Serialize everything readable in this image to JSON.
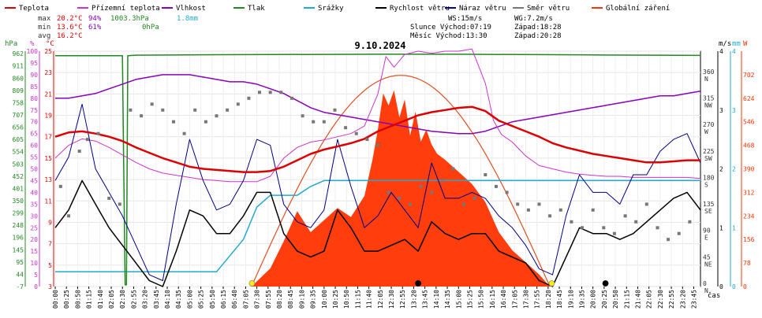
{
  "chart_data": {
    "type": "line",
    "title": "9.10.2024",
    "legend": [
      {
        "name": "Teplota",
        "color": "#dd0000"
      },
      {
        "name": "Přízemní teplota",
        "color": "#cc33cc"
      },
      {
        "name": "Vlhkost",
        "color": "#8800bb"
      },
      {
        "name": "Tlak",
        "color": "#228822"
      },
      {
        "name": "Srážky",
        "color": "#22aacc"
      },
      {
        "name": "Rychlost větru",
        "color": "#000000"
      },
      {
        "name": "Náraz větru",
        "color": "#000088"
      },
      {
        "name": "Směr větru",
        "color": "#777777"
      },
      {
        "name": "Globální záření",
        "color": "#ff3300"
      }
    ],
    "stats": {
      "max": {
        "label": "max",
        "temp": "20.2°C",
        "hum": "94%",
        "press": "1003.3hPa",
        "rain": "1.8mm"
      },
      "min": {
        "label": "min",
        "temp": "13.6°C",
        "hum": "61%",
        "press": "0hPa"
      },
      "avg": {
        "label": "avg",
        "temp": "16.2°C"
      }
    },
    "info": {
      "ws": "WS:15m/s",
      "wg": "WG:7.2m/s",
      "sun": "Slunce Východ:07:19",
      "sun_set": "Západ:18:28",
      "moon": "Měsíc  Východ:13:30",
      "moon_set": "Západ:20:28"
    },
    "axis_titles": {
      "hpa": "hPa",
      "pct": "%",
      "degc": "°C",
      "ms": "m/s",
      "mm": "mm",
      "w": "W",
      "time": "čas"
    },
    "left_axes": {
      "hpa": [
        "-7",
        "44",
        "95",
        "145",
        "196",
        "248",
        "299",
        "350",
        "401",
        "452",
        "503",
        "554",
        "605",
        "656",
        "707",
        "758",
        "809",
        "860",
        "911",
        "962"
      ],
      "pct": [
        "0",
        "5",
        "10",
        "15",
        "20",
        "25",
        "30",
        "35",
        "40",
        "45",
        "50",
        "55",
        "60",
        "65",
        "70",
        "75",
        "80",
        "85",
        "90",
        "95",
        "100"
      ],
      "degc": [
        "3",
        "5",
        "7",
        "9",
        "11",
        "13",
        "15",
        "17",
        "19",
        "21",
        "23",
        "25"
      ]
    },
    "right_axes": {
      "dir": [
        {
          "v": 0,
          "label": "0",
          "card": "N"
        },
        {
          "v": 45,
          "label": "45",
          "card": "NE"
        },
        {
          "v": 90,
          "label": "90",
          "card": "E"
        },
        {
          "v": 135,
          "label": "135",
          "card": "SE"
        },
        {
          "v": 180,
          "label": "180",
          "card": "S"
        },
        {
          "v": 225,
          "label": "225",
          "card": "SW"
        },
        {
          "v": 270,
          "label": "270",
          "card": "W"
        },
        {
          "v": 315,
          "label": "315",
          "card": "NW"
        },
        {
          "v": 360,
          "label": "360",
          "card": "N"
        }
      ],
      "ms": [
        "0",
        "1",
        "2",
        "3",
        "4"
      ],
      "mm": [
        "0",
        "1",
        "2",
        "3",
        "4"
      ],
      "w": [
        "0",
        "78",
        "156",
        "234",
        "312",
        "390",
        "468",
        "546",
        "624",
        "702"
      ]
    },
    "x_ticks": [
      "00:00",
      "00:25",
      "00:50",
      "01:15",
      "01:40",
      "02:05",
      "02:30",
      "02:55",
      "03:20",
      "03:45",
      "04:10",
      "04:35",
      "05:00",
      "05:25",
      "05:50",
      "06:15",
      "06:40",
      "07:05",
      "07:30",
      "07:55",
      "08:20",
      "08:45",
      "09:10",
      "09:35",
      "10:00",
      "10:25",
      "10:50",
      "11:15",
      "11:40",
      "12:05",
      "12:30",
      "12:55",
      "13:20",
      "13:45",
      "14:10",
      "14:35",
      "15:00",
      "15:25",
      "15:50",
      "16:15",
      "16:40",
      "17:05",
      "17:30",
      "17:55",
      "18:20",
      "18:45",
      "19:10",
      "19:35",
      "20:00",
      "20:25",
      "20:50",
      "21:15",
      "21:40",
      "22:05",
      "22:30",
      "22:55",
      "23:20",
      "23:45"
    ],
    "temperature": {
      "x": [
        0,
        0.5,
        1,
        1.5,
        2,
        2.5,
        3,
        3.5,
        4,
        4.5,
        5,
        5.5,
        6,
        6.5,
        7,
        7.5,
        8,
        8.5,
        9,
        9.5,
        10,
        10.5,
        11,
        11.5,
        12,
        12.5,
        13,
        13.5,
        14,
        14.5,
        15,
        15.5,
        16,
        16.5,
        17,
        17.5,
        18,
        18.5,
        19,
        19.5,
        20,
        20.5,
        21,
        21.5,
        22,
        22.5,
        23,
        23.5,
        24
      ],
      "values": [
        17.0,
        17.4,
        17.5,
        17.3,
        17.0,
        16.6,
        16.0,
        15.5,
        15.0,
        14.6,
        14.2,
        14.0,
        13.9,
        13.8,
        13.7,
        13.7,
        13.8,
        14.2,
        14.8,
        15.4,
        15.8,
        16.1,
        16.4,
        16.8,
        17.5,
        18.0,
        18.5,
        19.0,
        19.3,
        19.5,
        19.7,
        19.8,
        19.4,
        18.5,
        18.0,
        17.5,
        17.0,
        16.4,
        16.0,
        15.7,
        15.4,
        15.2,
        15.0,
        14.8,
        14.6,
        14.6,
        14.7,
        14.8,
        14.8
      ]
    },
    "ground_temperature": {
      "x": [
        0,
        0.5,
        1,
        1.5,
        2,
        2.5,
        3,
        3.5,
        4,
        4.5,
        5,
        5.5,
        6,
        6.5,
        7,
        7.5,
        8,
        8.5,
        9,
        9.5,
        10,
        10.5,
        11,
        11.5,
        12,
        12.3,
        12.6,
        13,
        13.5,
        14,
        14.5,
        15,
        15.5,
        16,
        16.3,
        16.6,
        17,
        17.5,
        18,
        18.5,
        19,
        19.5,
        20,
        20.5,
        21,
        21.5,
        22,
        22.5,
        23,
        23.5,
        24
      ],
      "values": [
        15.0,
        16.2,
        16.8,
        16.6,
        16.0,
        15.3,
        14.6,
        14.0,
        13.6,
        13.4,
        13.2,
        13.0,
        12.9,
        12.8,
        12.8,
        12.8,
        13.3,
        15.0,
        16.0,
        16.5,
        16.7,
        17.0,
        17.3,
        18.0,
        21.0,
        24.5,
        23.5,
        24.7,
        25.0,
        24.8,
        25.0,
        25.0,
        25.2,
        22.0,
        18.5,
        17.2,
        16.5,
        15.2,
        14.3,
        14.0,
        13.7,
        13.5,
        13.4,
        13.3,
        13.3,
        13.2,
        13.2,
        13.2,
        13.2,
        13.2,
        13.1
      ]
    },
    "humidity": {
      "x": [
        0,
        0.5,
        1,
        1.5,
        2,
        2.5,
        3,
        3.5,
        4,
        4.5,
        5,
        5.5,
        6,
        6.5,
        7,
        7.5,
        8,
        8.5,
        9,
        9.5,
        10,
        10.5,
        11,
        11.5,
        12,
        12.5,
        13,
        13.5,
        14,
        14.5,
        15,
        15.5,
        16,
        16.5,
        17,
        17.5,
        18,
        18.5,
        19,
        19.5,
        20,
        20.5,
        21,
        21.5,
        22,
        22.5,
        23,
        23.5,
        24
      ],
      "values": [
        80,
        80,
        81,
        82,
        84,
        86,
        88,
        89,
        90,
        90,
        90,
        89,
        88,
        87,
        87,
        86,
        84,
        82,
        79,
        76,
        74,
        73,
        72,
        71,
        70,
        69,
        68,
        67,
        66,
        65.5,
        65,
        65,
        66,
        68,
        70,
        71,
        72,
        73,
        74,
        75,
        76,
        77,
        78,
        79,
        80,
        81,
        81,
        82,
        83
      ]
    },
    "pressure": {
      "x": [
        0,
        2.5,
        2.6,
        2.65,
        2.7,
        3,
        6,
        12,
        15,
        20,
        24
      ],
      "values": [
        984,
        984,
        0,
        0,
        984,
        986,
        988,
        990,
        990,
        987,
        985
      ],
      "range": [
        -7,
        1003.3
      ]
    },
    "rain": {
      "x": [
        0,
        6,
        7,
        7.5,
        8,
        8.5,
        9,
        9.5,
        10,
        24
      ],
      "values": [
        0.25,
        0.25,
        0.8,
        1.35,
        1.55,
        1.55,
        1.55,
        1.7,
        1.8,
        1.8
      ]
    },
    "wind_speed": {
      "x": [
        0,
        0.5,
        1,
        1.5,
        2,
        2.5,
        3,
        3.5,
        4,
        4.5,
        5,
        5.5,
        6,
        6.5,
        7,
        7.5,
        8,
        8.5,
        9,
        9.5,
        10,
        10.5,
        11,
        11.5,
        12,
        12.5,
        13,
        13.5,
        14,
        14.5,
        15,
        15.5,
        16,
        16.5,
        17,
        17.5,
        18,
        18.5,
        19,
        19.5,
        20,
        20.5,
        21,
        21.5,
        22,
        22.5,
        23,
        23.5,
        24
      ],
      "values": [
        1.0,
        1.3,
        1.8,
        1.4,
        1.0,
        0.7,
        0.4,
        0.1,
        0.0,
        0.6,
        1.3,
        1.2,
        0.9,
        0.9,
        1.2,
        1.6,
        1.6,
        0.9,
        0.6,
        0.5,
        0.6,
        1.3,
        1.0,
        0.6,
        0.6,
        0.7,
        0.8,
        0.6,
        1.1,
        0.9,
        0.8,
        0.9,
        0.9,
        0.6,
        0.5,
        0.4,
        0.1,
        0.0,
        0.5,
        1.0,
        0.9,
        0.9,
        0.8,
        0.9,
        1.1,
        1.3,
        1.5,
        1.6,
        1.3
      ]
    },
    "wind_gust": {
      "x": [
        0,
        0.5,
        1,
        1.5,
        2,
        2.5,
        3,
        3.5,
        4,
        4.5,
        5,
        5.5,
        6,
        6.5,
        7,
        7.5,
        8,
        8.5,
        9,
        9.5,
        10,
        10.5,
        11,
        11.5,
        12,
        12.5,
        13,
        13.5,
        14,
        14.5,
        15,
        15.5,
        16,
        16.5,
        17,
        17.5,
        18,
        18.5,
        19,
        19.5,
        20,
        20.5,
        21,
        21.5,
        22,
        22.5,
        23,
        23.5,
        24
      ],
      "values": [
        1.8,
        2.2,
        3.1,
        2.0,
        1.6,
        1.2,
        0.7,
        0.2,
        0.1,
        1.4,
        2.5,
        1.8,
        1.3,
        1.4,
        1.8,
        2.5,
        2.4,
        1.4,
        1.1,
        1.0,
        1.3,
        2.5,
        1.7,
        1.0,
        1.2,
        1.6,
        1.3,
        1.0,
        2.1,
        1.5,
        1.5,
        1.6,
        1.5,
        1.2,
        1.0,
        0.7,
        0.3,
        0.2,
        1.2,
        1.9,
        1.6,
        1.6,
        1.4,
        1.9,
        1.9,
        2.3,
        2.5,
        2.6,
        2.1
      ]
    },
    "wind_direction": {
      "x": [
        0.2,
        0.5,
        0.9,
        1.2,
        1.6,
        2.0,
        2.4,
        2.8,
        3.2,
        3.6,
        4.0,
        4.4,
        4.8,
        5.2,
        5.6,
        6.0,
        6.4,
        6.8,
        7.2,
        7.6,
        8.0,
        8.4,
        8.8,
        9.2,
        9.6,
        10.0,
        10.4,
        10.8,
        11.2,
        11.6,
        12.0,
        12.4,
        12.8,
        13.2,
        13.6,
        14.0,
        14.4,
        14.8,
        15.2,
        15.6,
        16.0,
        16.4,
        16.8,
        17.2,
        17.6,
        18.0,
        18.4,
        18.8,
        19.2,
        19.6,
        20.0,
        20.4,
        20.8,
        21.2,
        21.6,
        22.0,
        22.4,
        22.8,
        23.2,
        23.6
      ],
      "values": [
        170,
        120,
        230,
        250,
        260,
        150,
        140,
        300,
        290,
        310,
        300,
        280,
        260,
        300,
        280,
        290,
        300,
        310,
        320,
        330,
        330,
        330,
        320,
        290,
        280,
        280,
        300,
        270,
        260,
        250,
        240,
        160,
        150,
        140,
        170,
        160,
        180,
        200,
        140,
        150,
        190,
        170,
        160,
        140,
        130,
        140,
        120,
        130,
        110,
        100,
        130,
        100,
        90,
        120,
        110,
        140,
        100,
        80,
        90,
        110
      ]
    },
    "solar_radiation": {
      "x": [
        7.3,
        8.0,
        8.5,
        9.0,
        9.5,
        10.0,
        10.5,
        11.0,
        11.5,
        11.8,
        12.0,
        12.2,
        12.4,
        12.6,
        12.8,
        13.0,
        13.2,
        13.4,
        13.6,
        13.8,
        14.0,
        14.2,
        14.5,
        15.0,
        15.5,
        16.0,
        16.5,
        17.0,
        17.5,
        18.0,
        18.4
      ],
      "values": [
        0,
        60,
        150,
        250,
        180,
        220,
        260,
        230,
        300,
        420,
        520,
        640,
        600,
        650,
        560,
        620,
        500,
        580,
        480,
        520,
        470,
        440,
        420,
        380,
        340,
        280,
        180,
        120,
        80,
        40,
        0
      ],
      "clear_sky": {
        "x": [
          7.3,
          9,
          11,
          12.55,
          14,
          16,
          18.4
        ],
        "values": [
          0,
          420,
          640,
          700,
          640,
          420,
          0
        ]
      }
    },
    "markers": {
      "sunrise": "07:19",
      "sunset": "18:28",
      "moonrise": "13:30",
      "moonset": "20:28"
    }
  }
}
